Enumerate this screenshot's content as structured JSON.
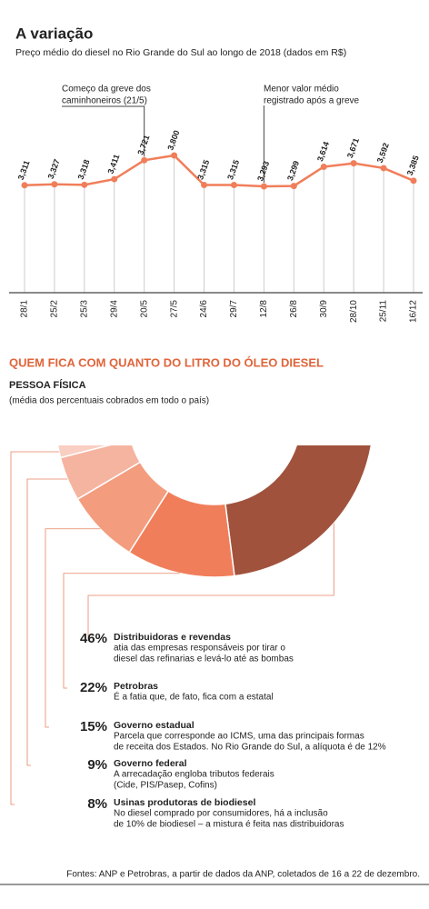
{
  "chart_data": [
    {
      "type": "line",
      "title": "A variação",
      "subtitle": "Preço médio do diesel no Rio Grande do Sul ao longo de 2018 (dados em R$)",
      "categories": [
        "28/1",
        "25/2",
        "25/3",
        "29/4",
        "20/5",
        "27/5",
        "24/6",
        "29/7",
        "12/8",
        "26/8",
        "30/9",
        "28/10",
        "25/11",
        "16/12"
      ],
      "values": [
        3.311,
        3.327,
        3.318,
        3.411,
        3.721,
        3.8,
        3.315,
        3.315,
        3.293,
        3.299,
        3.614,
        3.671,
        3.592,
        3.385
      ],
      "value_labels": [
        "3,311",
        "3,327",
        "3,318",
        "3,411",
        "3,721",
        "3,800",
        "3,315",
        "3,315",
        "3,293",
        "3,299",
        "3,614",
        "3,671",
        "3,592",
        "3,385"
      ],
      "color": "#f07e5a",
      "annotations": [
        [
          "Começo da greve dos",
          "caminhoneiros (21/5)"
        ],
        [
          "Menor valor médio",
          "registrado após a greve"
        ]
      ]
    },
    {
      "type": "pie",
      "title": "QUEM FICA COM QUANTO DO LITRO DO ÓLEO DIESEL",
      "subtitle": "PESSOA FÍSICA",
      "note": "(média dos percentuais cobrados em todo o país)",
      "categories": [
        "Distribuidoras e revendas",
        "Petrobras",
        "Governo estadual",
        "Governo federal",
        "Usinas produtoras de biodiesel"
      ],
      "values": [
        46,
        22,
        15,
        9,
        8
      ],
      "value_labels": [
        "46%",
        "22%",
        "15%",
        "9%",
        "8%"
      ],
      "colors": [
        "#a0523d",
        "#f07e5a",
        "#f39c7e",
        "#f5b4a0",
        "#f8cfc2"
      ],
      "descriptions": [
        [
          "atia das empresas responsáveis por tirar o",
          "diesel das refinarias e levá-lo até as bombas"
        ],
        [
          "É a fatia que, de fato, fica com a estatal"
        ],
        [
          "Parcela que corresponde ao ICMS, uma das principais formas",
          "de receita dos Estados. No Rio Grande do Sul, a alíquota é de 12%"
        ],
        [
          "A arrecadação engloba tributos federais",
          "(Cide, PIS/Pasep, Cofins)"
        ],
        [
          "No diesel comprado por consumidores, há a inclusão",
          "de 10% de biodiesel – a mistura é feita nas distribuidoras"
        ]
      ]
    }
  ],
  "source": "Fontes: ANP e Petrobras, a partir de dados da ANP, coletados de 16 a 22 de dezembro."
}
